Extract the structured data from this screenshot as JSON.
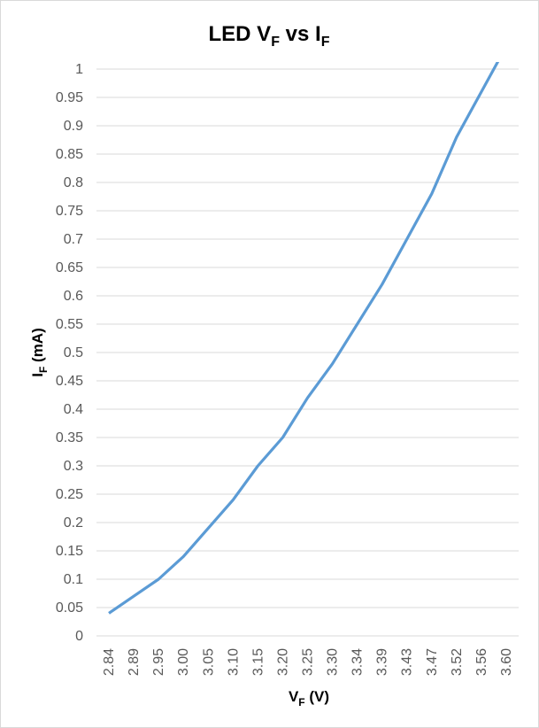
{
  "chart_data": {
    "type": "line",
    "title": {
      "main": "LED V",
      "sub1": "F",
      "mid": " vs I",
      "sub2": "F"
    },
    "xlabel": {
      "main": "V",
      "sub": "F",
      "rest": " (V)"
    },
    "ylabel": {
      "main": "I",
      "sub": "F",
      "rest": " (mA)"
    },
    "categories": [
      "2.84",
      "2.89",
      "2.95",
      "3.00",
      "3.05",
      "3.10",
      "3.15",
      "3.20",
      "3.25",
      "3.30",
      "3.34",
      "3.39",
      "3.43",
      "3.47",
      "3.52",
      "3.56",
      "3.60"
    ],
    "values": [
      0.04,
      0.07,
      0.1,
      0.14,
      0.19,
      0.24,
      0.3,
      0.35,
      0.42,
      0.48,
      0.55,
      0.62,
      0.7,
      0.78,
      0.88,
      0.96,
      1.04
    ],
    "ylim": [
      0,
      1
    ],
    "yticks": [
      "0",
      "0.05",
      "0.1",
      "0.15",
      "0.2",
      "0.25",
      "0.3",
      "0.35",
      "0.4",
      "0.45",
      "0.5",
      "0.55",
      "0.6",
      "0.65",
      "0.7",
      "0.75",
      "0.8",
      "0.85",
      "0.9",
      "0.95",
      "1"
    ],
    "grid": true,
    "legend": "none",
    "line_color": "#5b9bd5"
  }
}
